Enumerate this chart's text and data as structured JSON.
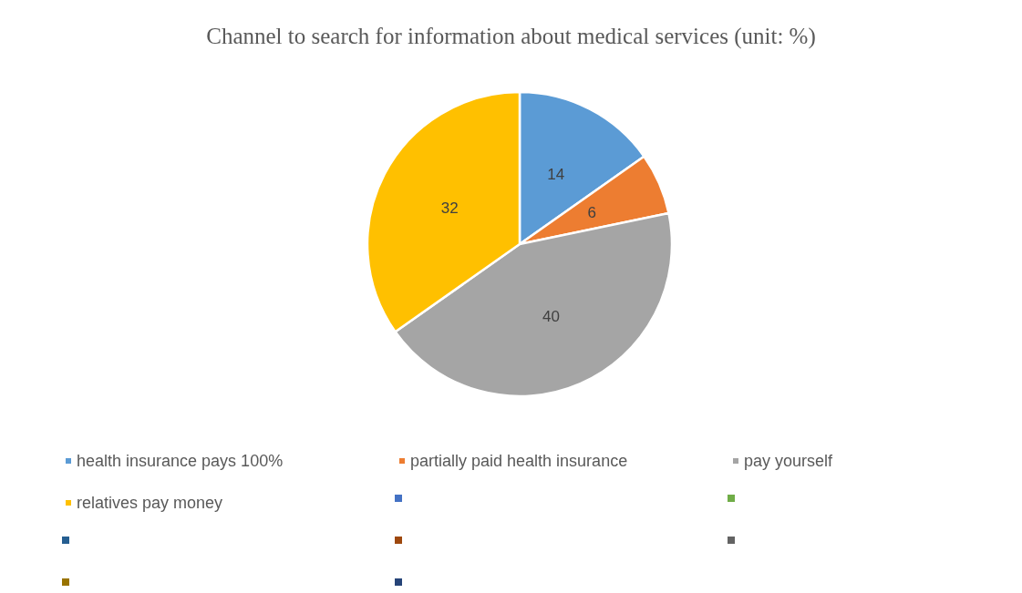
{
  "chart_data": {
    "type": "pie",
    "title": "Channel to search for information about medical services (unit: %)",
    "categories": [
      "health insurance pays 100%",
      "partially paid health insurance",
      "pay yourself",
      "relatives pay money",
      null,
      null,
      null,
      null,
      null,
      null,
      null
    ],
    "values": [
      14,
      6,
      40,
      32,
      null,
      null,
      null,
      null,
      null,
      null,
      null
    ],
    "colors": [
      "#5b9bd5",
      "#ed7d31",
      "#a5a5a5",
      "#ffc000",
      "#4472c4",
      "#70ad47",
      "#255e91",
      "#9e480e",
      "#636363",
      "#997300",
      "#264478"
    ],
    "data_labels": true,
    "legend": "bottom"
  }
}
